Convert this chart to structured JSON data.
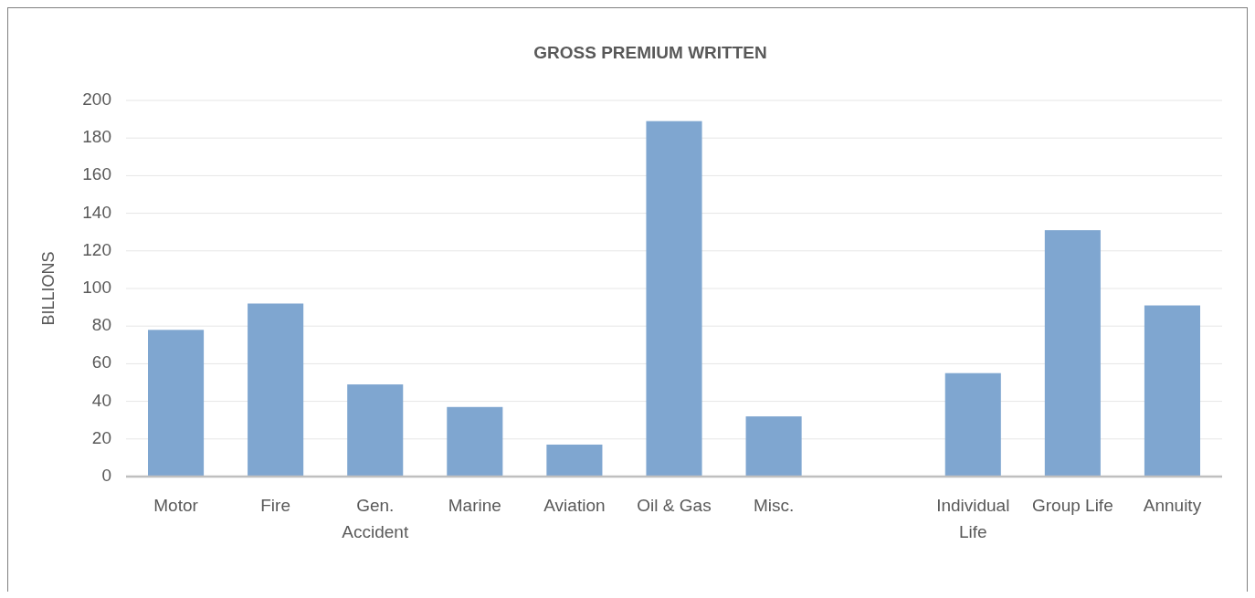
{
  "chart_data": {
    "type": "bar",
    "title": "GROSS PREMIUM WRITTEN",
    "ylabel": "BILLIONS",
    "categories": [
      "Motor",
      "Fire",
      "Gen. Accident",
      "Marine",
      "Aviation",
      "Oil & Gas",
      "Misc.",
      null,
      "Individual Life",
      "Group Life",
      "Annuity"
    ],
    "values": [
      78,
      92,
      49,
      37,
      17,
      189,
      32,
      null,
      55,
      131,
      91
    ],
    "color": "#7fa6d0",
    "ylim": [
      0,
      200
    ],
    "yticks": [
      0,
      20,
      40,
      60,
      80,
      100,
      120,
      140,
      160,
      180,
      200
    ],
    "grid": "y"
  }
}
